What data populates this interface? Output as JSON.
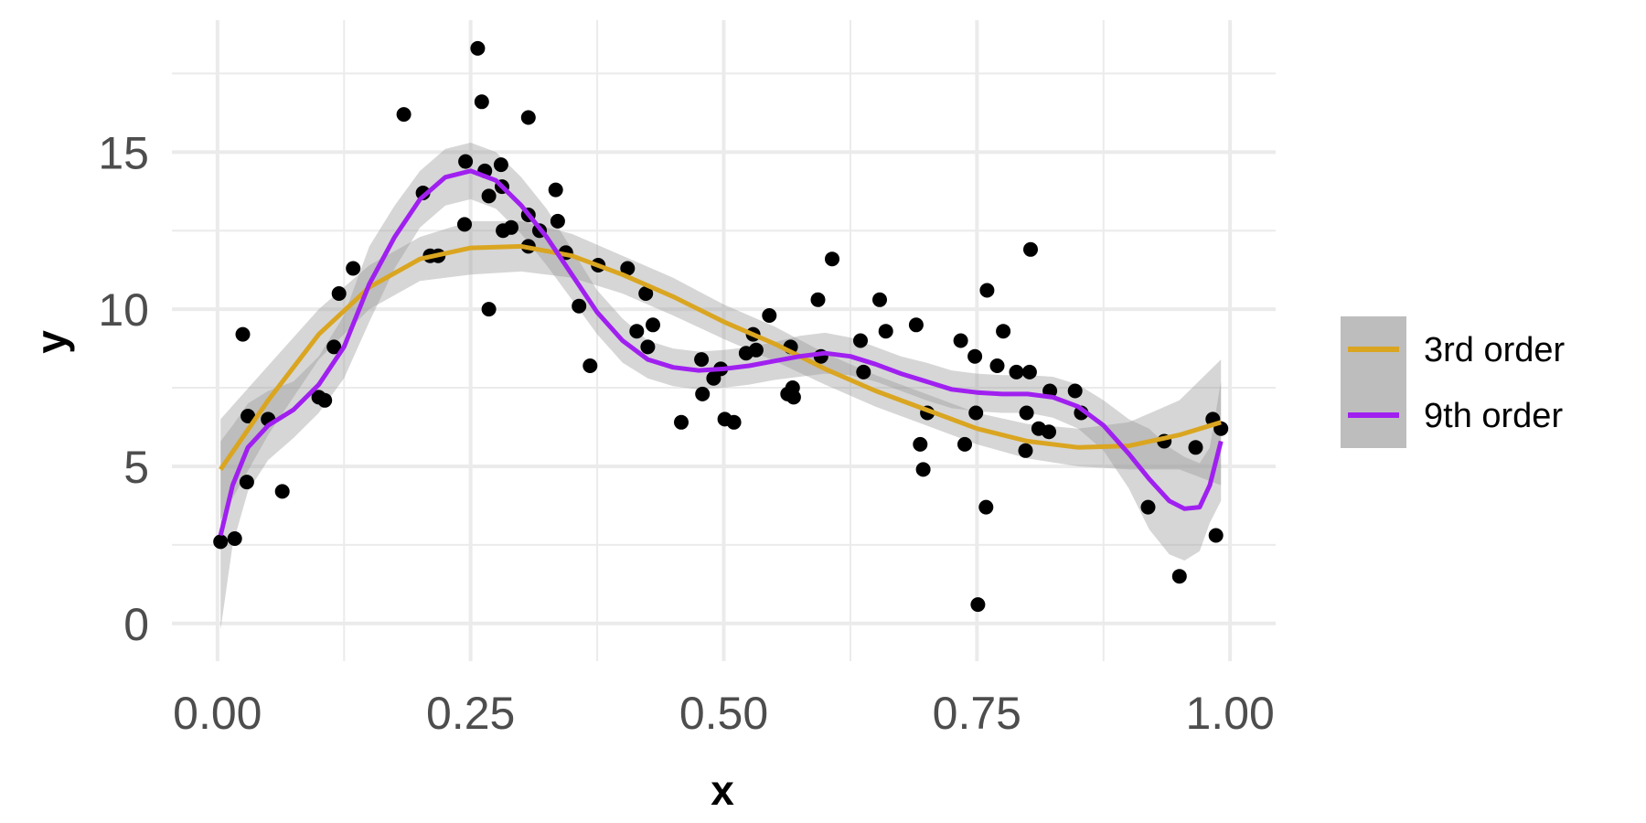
{
  "chart_data": {
    "type": "scatter",
    "xlabel": "x",
    "ylabel": "y",
    "xlim": [
      -0.045,
      1.045
    ],
    "ylim": [
      -1.2,
      19.2
    ],
    "x_ticks": [
      {
        "value": 0.0,
        "label": "0.00"
      },
      {
        "value": 0.25,
        "label": "0.25"
      },
      {
        "value": 0.5,
        "label": "0.50"
      },
      {
        "value": 0.75,
        "label": "0.75"
      },
      {
        "value": 1.0,
        "label": "1.00"
      }
    ],
    "y_ticks": [
      {
        "value": 0,
        "label": "0"
      },
      {
        "value": 5,
        "label": "5"
      },
      {
        "value": 10,
        "label": "10"
      },
      {
        "value": 15,
        "label": "15"
      }
    ],
    "x_minor": [
      0.125,
      0.375,
      0.625,
      0.875
    ],
    "y_minor": [
      2.5,
      7.5,
      12.5,
      17.5
    ],
    "grid": true,
    "legend_position": "right",
    "points": [
      {
        "x": 0.003,
        "y": 2.6
      },
      {
        "x": 0.017,
        "y": 2.7
      },
      {
        "x": 0.025,
        "y": 9.2
      },
      {
        "x": 0.029,
        "y": 4.5
      },
      {
        "x": 0.03,
        "y": 6.6
      },
      {
        "x": 0.05,
        "y": 6.5
      },
      {
        "x": 0.064,
        "y": 4.2
      },
      {
        "x": 0.1,
        "y": 7.2
      },
      {
        "x": 0.106,
        "y": 7.1
      },
      {
        "x": 0.115,
        "y": 8.8
      },
      {
        "x": 0.12,
        "y": 10.5
      },
      {
        "x": 0.134,
        "y": 11.3
      },
      {
        "x": 0.184,
        "y": 16.2
      },
      {
        "x": 0.203,
        "y": 13.7
      },
      {
        "x": 0.21,
        "y": 11.7
      },
      {
        "x": 0.218,
        "y": 11.7
      },
      {
        "x": 0.244,
        "y": 12.7
      },
      {
        "x": 0.245,
        "y": 14.7
      },
      {
        "x": 0.257,
        "y": 18.3
      },
      {
        "x": 0.261,
        "y": 16.6
      },
      {
        "x": 0.264,
        "y": 14.4
      },
      {
        "x": 0.268,
        "y": 13.6
      },
      {
        "x": 0.268,
        "y": 10.0
      },
      {
        "x": 0.28,
        "y": 14.6
      },
      {
        "x": 0.281,
        "y": 13.9
      },
      {
        "x": 0.282,
        "y": 12.5
      },
      {
        "x": 0.29,
        "y": 12.6
      },
      {
        "x": 0.307,
        "y": 16.1
      },
      {
        "x": 0.307,
        "y": 13.0
      },
      {
        "x": 0.307,
        "y": 12.0
      },
      {
        "x": 0.318,
        "y": 12.5
      },
      {
        "x": 0.334,
        "y": 13.8
      },
      {
        "x": 0.336,
        "y": 12.8
      },
      {
        "x": 0.344,
        "y": 11.8
      },
      {
        "x": 0.357,
        "y": 10.1
      },
      {
        "x": 0.368,
        "y": 8.2
      },
      {
        "x": 0.376,
        "y": 11.4
      },
      {
        "x": 0.405,
        "y": 11.3
      },
      {
        "x": 0.414,
        "y": 9.3
      },
      {
        "x": 0.423,
        "y": 10.5
      },
      {
        "x": 0.425,
        "y": 8.8
      },
      {
        "x": 0.43,
        "y": 9.5
      },
      {
        "x": 0.458,
        "y": 6.4
      },
      {
        "x": 0.478,
        "y": 8.4
      },
      {
        "x": 0.479,
        "y": 7.3
      },
      {
        "x": 0.49,
        "y": 7.8
      },
      {
        "x": 0.497,
        "y": 8.1
      },
      {
        "x": 0.501,
        "y": 6.5
      },
      {
        "x": 0.51,
        "y": 6.4
      },
      {
        "x": 0.522,
        "y": 8.6
      },
      {
        "x": 0.529,
        "y": 9.2
      },
      {
        "x": 0.532,
        "y": 8.7
      },
      {
        "x": 0.545,
        "y": 9.8
      },
      {
        "x": 0.563,
        "y": 7.3
      },
      {
        "x": 0.566,
        "y": 8.8
      },
      {
        "x": 0.568,
        "y": 7.5
      },
      {
        "x": 0.569,
        "y": 7.2
      },
      {
        "x": 0.593,
        "y": 10.3
      },
      {
        "x": 0.596,
        "y": 8.5
      },
      {
        "x": 0.607,
        "y": 11.6
      },
      {
        "x": 0.635,
        "y": 9.0
      },
      {
        "x": 0.638,
        "y": 8.0
      },
      {
        "x": 0.654,
        "y": 10.3
      },
      {
        "x": 0.66,
        "y": 9.3
      },
      {
        "x": 0.69,
        "y": 9.5
      },
      {
        "x": 0.694,
        "y": 5.7
      },
      {
        "x": 0.697,
        "y": 4.9
      },
      {
        "x": 0.701,
        "y": 6.7
      },
      {
        "x": 0.734,
        "y": 9.0
      },
      {
        "x": 0.738,
        "y": 5.7
      },
      {
        "x": 0.748,
        "y": 8.5
      },
      {
        "x": 0.749,
        "y": 6.7
      },
      {
        "x": 0.751,
        "y": 0.6
      },
      {
        "x": 0.759,
        "y": 3.7
      },
      {
        "x": 0.76,
        "y": 10.6
      },
      {
        "x": 0.77,
        "y": 8.2
      },
      {
        "x": 0.776,
        "y": 9.3
      },
      {
        "x": 0.789,
        "y": 8.0
      },
      {
        "x": 0.798,
        "y": 5.5
      },
      {
        "x": 0.799,
        "y": 6.7
      },
      {
        "x": 0.802,
        "y": 8.0
      },
      {
        "x": 0.803,
        "y": 11.9
      },
      {
        "x": 0.811,
        "y": 6.2
      },
      {
        "x": 0.821,
        "y": 6.1
      },
      {
        "x": 0.822,
        "y": 7.4
      },
      {
        "x": 0.847,
        "y": 7.4
      },
      {
        "x": 0.853,
        "y": 6.7
      },
      {
        "x": 0.919,
        "y": 3.7
      },
      {
        "x": 0.935,
        "y": 5.8
      },
      {
        "x": 0.95,
        "y": 1.5
      },
      {
        "x": 0.966,
        "y": 5.6
      },
      {
        "x": 0.983,
        "y": 6.5
      },
      {
        "x": 0.986,
        "y": 2.8
      },
      {
        "x": 0.991,
        "y": 6.2
      }
    ],
    "series": [
      {
        "name": "3rd order",
        "color": "#daa520",
        "band_color": "#999999",
        "x": [
          0.003,
          0.05,
          0.1,
          0.15,
          0.2,
          0.25,
          0.3,
          0.35,
          0.4,
          0.45,
          0.5,
          0.55,
          0.6,
          0.65,
          0.7,
          0.75,
          0.8,
          0.85,
          0.9,
          0.95,
          0.991
        ],
        "y": [
          4.9,
          7.1,
          9.2,
          10.7,
          11.6,
          11.95,
          12.0,
          11.7,
          11.1,
          10.4,
          9.6,
          8.9,
          8.1,
          7.4,
          6.8,
          6.2,
          5.8,
          5.6,
          5.65,
          6.0,
          6.4
        ],
        "lower": [
          3.3,
          6.0,
          8.4,
          10.0,
          10.9,
          11.1,
          11.2,
          11.0,
          10.5,
          9.8,
          9.05,
          8.35,
          7.6,
          6.9,
          6.3,
          5.7,
          5.25,
          5.0,
          4.9,
          4.9,
          4.4
        ],
        "upper": [
          6.5,
          8.2,
          10.0,
          11.4,
          12.3,
          12.8,
          12.8,
          12.4,
          11.7,
          11.0,
          10.15,
          9.45,
          8.6,
          7.9,
          7.3,
          6.7,
          6.35,
          6.2,
          6.4,
          7.1,
          8.4
        ]
      },
      {
        "name": "9th order",
        "color": "#a020f0",
        "band_color": "#999999",
        "x": [
          0.003,
          0.015,
          0.03,
          0.05,
          0.075,
          0.1,
          0.125,
          0.15,
          0.175,
          0.2,
          0.225,
          0.25,
          0.275,
          0.3,
          0.325,
          0.35,
          0.375,
          0.4,
          0.425,
          0.45,
          0.475,
          0.5,
          0.525,
          0.55,
          0.575,
          0.6,
          0.625,
          0.65,
          0.675,
          0.7,
          0.725,
          0.75,
          0.775,
          0.8,
          0.825,
          0.85,
          0.875,
          0.9,
          0.92,
          0.94,
          0.955,
          0.97,
          0.98,
          0.991
        ],
        "y": [
          2.8,
          4.4,
          5.6,
          6.3,
          6.8,
          7.6,
          8.8,
          10.8,
          12.3,
          13.5,
          14.2,
          14.4,
          14.1,
          13.3,
          12.3,
          11.1,
          9.9,
          9.0,
          8.4,
          8.15,
          8.05,
          8.1,
          8.2,
          8.35,
          8.5,
          8.6,
          8.5,
          8.25,
          7.95,
          7.7,
          7.45,
          7.35,
          7.3,
          7.3,
          7.2,
          6.9,
          6.3,
          5.4,
          4.6,
          3.9,
          3.65,
          3.7,
          4.4,
          5.8
        ],
        "lower": [
          -0.2,
          2.5,
          4.2,
          5.2,
          5.9,
          6.7,
          7.8,
          9.6,
          11.3,
          12.6,
          13.3,
          13.5,
          13.2,
          12.4,
          11.4,
          10.3,
          9.2,
          8.3,
          7.8,
          7.55,
          7.45,
          7.5,
          7.6,
          7.75,
          7.85,
          7.95,
          7.9,
          7.7,
          7.4,
          7.1,
          6.85,
          6.75,
          6.7,
          6.7,
          6.55,
          6.2,
          5.5,
          4.3,
          3.0,
          2.2,
          2.0,
          2.3,
          3.2,
          3.9
        ],
        "upper": [
          5.8,
          6.3,
          7.0,
          7.4,
          7.7,
          8.5,
          9.8,
          12.0,
          13.3,
          14.4,
          15.1,
          15.3,
          15.0,
          14.2,
          13.2,
          11.9,
          10.6,
          9.7,
          9.0,
          8.75,
          8.65,
          8.7,
          8.8,
          8.95,
          9.15,
          9.25,
          9.1,
          8.8,
          8.5,
          8.3,
          8.05,
          7.95,
          7.9,
          7.9,
          7.85,
          7.6,
          7.1,
          6.5,
          6.2,
          5.6,
          5.3,
          5.1,
          5.6,
          7.7
        ]
      }
    ]
  }
}
